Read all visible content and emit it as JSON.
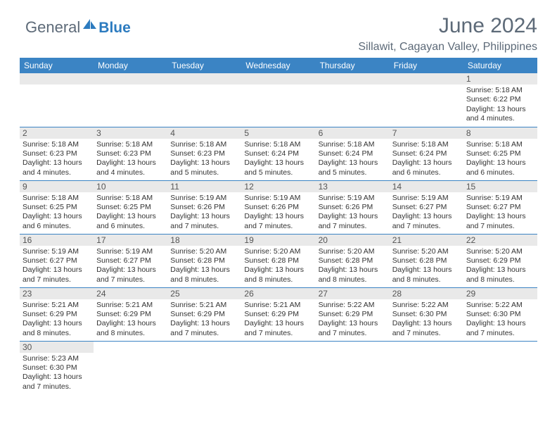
{
  "logo": {
    "part1": "General",
    "part2": "Blue"
  },
  "title": "June 2024",
  "location": "Sillawit, Cagayan Valley, Philippines",
  "weekdays": [
    "Sunday",
    "Monday",
    "Tuesday",
    "Wednesday",
    "Thursday",
    "Friday",
    "Saturday"
  ],
  "colors": {
    "header_bg": "#3b84c4",
    "header_text": "#ffffff",
    "daynum_bg": "#e9e9e9",
    "border": "#3b84c4",
    "title_color": "#5d6a78"
  },
  "weeks": [
    [
      null,
      null,
      null,
      null,
      null,
      null,
      {
        "n": "1",
        "sr": "Sunrise: 5:18 AM",
        "ss": "Sunset: 6:22 PM",
        "d1": "Daylight: 13 hours",
        "d2": "and 4 minutes."
      }
    ],
    [
      {
        "n": "2",
        "sr": "Sunrise: 5:18 AM",
        "ss": "Sunset: 6:23 PM",
        "d1": "Daylight: 13 hours",
        "d2": "and 4 minutes."
      },
      {
        "n": "3",
        "sr": "Sunrise: 5:18 AM",
        "ss": "Sunset: 6:23 PM",
        "d1": "Daylight: 13 hours",
        "d2": "and 4 minutes."
      },
      {
        "n": "4",
        "sr": "Sunrise: 5:18 AM",
        "ss": "Sunset: 6:23 PM",
        "d1": "Daylight: 13 hours",
        "d2": "and 5 minutes."
      },
      {
        "n": "5",
        "sr": "Sunrise: 5:18 AM",
        "ss": "Sunset: 6:24 PM",
        "d1": "Daylight: 13 hours",
        "d2": "and 5 minutes."
      },
      {
        "n": "6",
        "sr": "Sunrise: 5:18 AM",
        "ss": "Sunset: 6:24 PM",
        "d1": "Daylight: 13 hours",
        "d2": "and 5 minutes."
      },
      {
        "n": "7",
        "sr": "Sunrise: 5:18 AM",
        "ss": "Sunset: 6:24 PM",
        "d1": "Daylight: 13 hours",
        "d2": "and 6 minutes."
      },
      {
        "n": "8",
        "sr": "Sunrise: 5:18 AM",
        "ss": "Sunset: 6:25 PM",
        "d1": "Daylight: 13 hours",
        "d2": "and 6 minutes."
      }
    ],
    [
      {
        "n": "9",
        "sr": "Sunrise: 5:18 AM",
        "ss": "Sunset: 6:25 PM",
        "d1": "Daylight: 13 hours",
        "d2": "and 6 minutes."
      },
      {
        "n": "10",
        "sr": "Sunrise: 5:18 AM",
        "ss": "Sunset: 6:25 PM",
        "d1": "Daylight: 13 hours",
        "d2": "and 6 minutes."
      },
      {
        "n": "11",
        "sr": "Sunrise: 5:19 AM",
        "ss": "Sunset: 6:26 PM",
        "d1": "Daylight: 13 hours",
        "d2": "and 7 minutes."
      },
      {
        "n": "12",
        "sr": "Sunrise: 5:19 AM",
        "ss": "Sunset: 6:26 PM",
        "d1": "Daylight: 13 hours",
        "d2": "and 7 minutes."
      },
      {
        "n": "13",
        "sr": "Sunrise: 5:19 AM",
        "ss": "Sunset: 6:26 PM",
        "d1": "Daylight: 13 hours",
        "d2": "and 7 minutes."
      },
      {
        "n": "14",
        "sr": "Sunrise: 5:19 AM",
        "ss": "Sunset: 6:27 PM",
        "d1": "Daylight: 13 hours",
        "d2": "and 7 minutes."
      },
      {
        "n": "15",
        "sr": "Sunrise: 5:19 AM",
        "ss": "Sunset: 6:27 PM",
        "d1": "Daylight: 13 hours",
        "d2": "and 7 minutes."
      }
    ],
    [
      {
        "n": "16",
        "sr": "Sunrise: 5:19 AM",
        "ss": "Sunset: 6:27 PM",
        "d1": "Daylight: 13 hours",
        "d2": "and 7 minutes."
      },
      {
        "n": "17",
        "sr": "Sunrise: 5:19 AM",
        "ss": "Sunset: 6:27 PM",
        "d1": "Daylight: 13 hours",
        "d2": "and 7 minutes."
      },
      {
        "n": "18",
        "sr": "Sunrise: 5:20 AM",
        "ss": "Sunset: 6:28 PM",
        "d1": "Daylight: 13 hours",
        "d2": "and 8 minutes."
      },
      {
        "n": "19",
        "sr": "Sunrise: 5:20 AM",
        "ss": "Sunset: 6:28 PM",
        "d1": "Daylight: 13 hours",
        "d2": "and 8 minutes."
      },
      {
        "n": "20",
        "sr": "Sunrise: 5:20 AM",
        "ss": "Sunset: 6:28 PM",
        "d1": "Daylight: 13 hours",
        "d2": "and 8 minutes."
      },
      {
        "n": "21",
        "sr": "Sunrise: 5:20 AM",
        "ss": "Sunset: 6:28 PM",
        "d1": "Daylight: 13 hours",
        "d2": "and 8 minutes."
      },
      {
        "n": "22",
        "sr": "Sunrise: 5:20 AM",
        "ss": "Sunset: 6:29 PM",
        "d1": "Daylight: 13 hours",
        "d2": "and 8 minutes."
      }
    ],
    [
      {
        "n": "23",
        "sr": "Sunrise: 5:21 AM",
        "ss": "Sunset: 6:29 PM",
        "d1": "Daylight: 13 hours",
        "d2": "and 8 minutes."
      },
      {
        "n": "24",
        "sr": "Sunrise: 5:21 AM",
        "ss": "Sunset: 6:29 PM",
        "d1": "Daylight: 13 hours",
        "d2": "and 8 minutes."
      },
      {
        "n": "25",
        "sr": "Sunrise: 5:21 AM",
        "ss": "Sunset: 6:29 PM",
        "d1": "Daylight: 13 hours",
        "d2": "and 7 minutes."
      },
      {
        "n": "26",
        "sr": "Sunrise: 5:21 AM",
        "ss": "Sunset: 6:29 PM",
        "d1": "Daylight: 13 hours",
        "d2": "and 7 minutes."
      },
      {
        "n": "27",
        "sr": "Sunrise: 5:22 AM",
        "ss": "Sunset: 6:29 PM",
        "d1": "Daylight: 13 hours",
        "d2": "and 7 minutes."
      },
      {
        "n": "28",
        "sr": "Sunrise: 5:22 AM",
        "ss": "Sunset: 6:30 PM",
        "d1": "Daylight: 13 hours",
        "d2": "and 7 minutes."
      },
      {
        "n": "29",
        "sr": "Sunrise: 5:22 AM",
        "ss": "Sunset: 6:30 PM",
        "d1": "Daylight: 13 hours",
        "d2": "and 7 minutes."
      }
    ],
    [
      {
        "n": "30",
        "sr": "Sunrise: 5:23 AM",
        "ss": "Sunset: 6:30 PM",
        "d1": "Daylight: 13 hours",
        "d2": "and 7 minutes."
      },
      null,
      null,
      null,
      null,
      null,
      null
    ]
  ]
}
